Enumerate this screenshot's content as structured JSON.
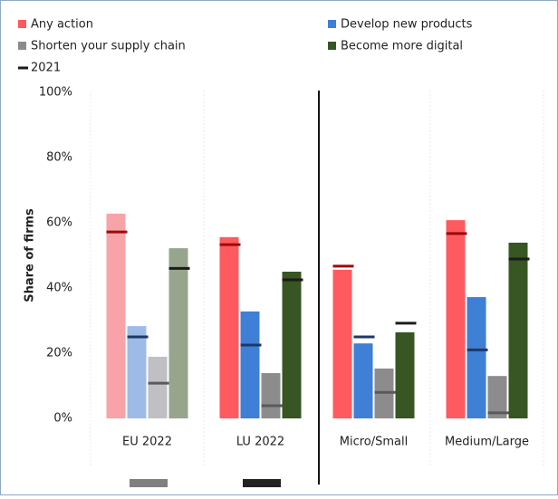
{
  "chart_data": {
    "type": "bar",
    "categories": [
      "EU 2022",
      "LU 2022",
      "Micro/Small",
      "Medium/Large"
    ],
    "y_label": "Share of firms",
    "marker_label": "2021",
    "marker_color": "#1b1b1b",
    "series": [
      {
        "name": "Any action",
        "color": "#ff5a5f",
        "point_colors": [
          "#f7a3a8",
          "#ff5a5f",
          "#ff5a5f",
          "#ff5a5f"
        ],
        "marker_color": "#9c0a0a",
        "values": [
          62.8,
          55.6,
          45.6,
          60.8
        ],
        "values_2021": [
          57.2,
          53.3,
          46.7,
          56.7
        ]
      },
      {
        "name": "Develop new products",
        "color": "#3f7fd6",
        "point_colors": [
          "#9dbbe6",
          "#3f7fd6",
          "#3f7fd6",
          "#3f7fd6"
        ],
        "marker_color": "#1f3864",
        "values": [
          28.3,
          32.8,
          23,
          37.2
        ],
        "values_2021": [
          25,
          22.5,
          25,
          21
        ]
      },
      {
        "name": "Shorten your supply chain",
        "color": "#8c8c8c",
        "point_colors": [
          "#c0c0c4",
          "#8c8c8c",
          "#8c8c8c",
          "#8c8c8c"
        ],
        "marker_color": "#5a5a5a",
        "values": [
          18.9,
          13.9,
          15.3,
          13
        ],
        "values_2021": [
          10.8,
          3.9,
          8,
          1.7
        ]
      },
      {
        "name": "Become more digital",
        "color": "#375623",
        "point_colors": [
          "#97a58d",
          "#375623",
          "#375623",
          "#375623"
        ],
        "marker_color": "#1b1b1b",
        "values": [
          52.2,
          45,
          26.4,
          53.9
        ],
        "values_2021": [
          46,
          42.5,
          29.2,
          48.9
        ]
      }
    ],
    "ylim": [
      0,
      100
    ],
    "yticks": [
      {
        "value": 0,
        "label": "0%"
      },
      {
        "value": 20,
        "label": "20%"
      },
      {
        "value": 40,
        "label": "40%"
      },
      {
        "value": 60,
        "label": "60%"
      },
      {
        "value": 80,
        "label": "80%"
      },
      {
        "value": 100,
        "label": "100%"
      }
    ]
  }
}
